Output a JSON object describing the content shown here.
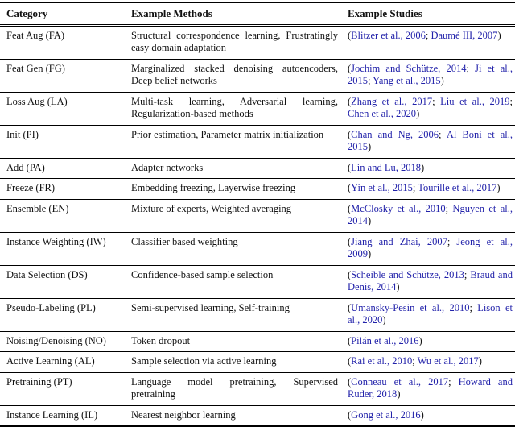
{
  "page": {
    "background": "#ffffff",
    "text_color": "#111111",
    "link_color": "#2222aa"
  },
  "table": {
    "header": {
      "category": "Category",
      "methods": "Example Methods",
      "studies": "Example Studies"
    },
    "rows": [
      {
        "category": "Feat Aug (FA)",
        "methods": "Structural correspondence learning, Frustratingly easy domain adaptation",
        "studies": [
          "Blitzer et al., 2006",
          "Daumé III, 2007"
        ]
      },
      {
        "category": "Feat Gen (FG)",
        "methods": "Marginalized stacked denoising autoencoders, Deep belief networks",
        "studies": [
          "Jochim and Schütze, 2014",
          "Ji et al., 2015",
          "Yang et al., 2015"
        ]
      },
      {
        "category": "Loss Aug (LA)",
        "methods": "Multi-task learning, Adversarial learning, Regularization-based methods",
        "studies": [
          "Zhang et al., 2017",
          "Liu et al., 2019",
          "Chen et al., 2020"
        ]
      },
      {
        "category": "Init (PI)",
        "methods": "Prior estimation, Parameter matrix initialization",
        "studies": [
          "Chan and Ng, 2006",
          "Al Boni et al., 2015"
        ]
      },
      {
        "category": "Add (PA)",
        "methods": "Adapter networks",
        "studies": [
          "Lin and Lu, 2018"
        ]
      },
      {
        "category": "Freeze (FR)",
        "methods": "Embedding freezing, Layerwise freezing",
        "studies": [
          "Yin et al., 2015",
          "Tourille et al., 2017"
        ]
      },
      {
        "category": "Ensemble (EN)",
        "methods": "Mixture of experts, Weighted averaging",
        "studies": [
          "McClosky et al., 2010",
          "Nguyen et al., 2014"
        ]
      },
      {
        "category": "Instance Weighting (IW)",
        "methods": "Classifier based weighting",
        "studies": [
          "Jiang and Zhai, 2007",
          "Jeong et al., 2009"
        ]
      },
      {
        "category": "Data Selection (DS)",
        "methods": "Confidence-based sample selection",
        "studies": [
          "Scheible and Schütze, 2013",
          "Braud and Denis, 2014"
        ]
      },
      {
        "category": "Pseudo-Labeling (PL)",
        "methods": "Semi-supervised learning, Self-training",
        "studies": [
          "Umansky-Pesin et al., 2010",
          "Lison et al., 2020"
        ]
      },
      {
        "category": "Noising/Denoising (NO)",
        "methods": "Token dropout",
        "studies": [
          "Pilán et al., 2016"
        ]
      },
      {
        "category": "Active Learning (AL)",
        "methods": "Sample selection via active learning",
        "studies": [
          "Rai et al., 2010",
          "Wu et al., 2017"
        ]
      },
      {
        "category": "Pretraining (PT)",
        "methods": "Language model pretraining, Supervised pretraining",
        "studies": [
          "Conneau et al., 2017",
          "Howard and Ruder, 2018"
        ]
      },
      {
        "category": "Instance Learning (IL)",
        "methods": "Nearest neighbor learning",
        "studies": [
          "Gong et al., 2016"
        ]
      }
    ]
  }
}
